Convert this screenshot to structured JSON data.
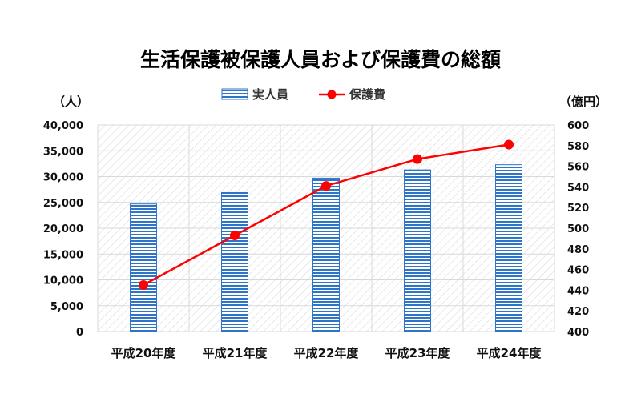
{
  "chart_data": {
    "type": "bar+line",
    "title": "生活保護被保護人員および保護費の総額",
    "categories": [
      "平成20年度",
      "平成21年度",
      "平成22年度",
      "平成23年度",
      "平成24年度"
    ],
    "series": [
      {
        "name": "実人員",
        "type": "bar",
        "axis": "left",
        "color": "#2e75c9",
        "values": [
          24700,
          26900,
          29700,
          31300,
          32300
        ]
      },
      {
        "name": "保護費",
        "type": "line",
        "axis": "right",
        "color": "#ff0000",
        "values": [
          445,
          493,
          541,
          567,
          581
        ]
      }
    ],
    "left_axis": {
      "unit": "（人）",
      "ylim": [
        0,
        40000
      ],
      "ticks": [
        "0",
        "5,000",
        "10,000",
        "15,000",
        "20,000",
        "25,000",
        "30,000",
        "35,000",
        "40,000"
      ]
    },
    "right_axis": {
      "unit": "（億円）",
      "ylim": [
        400,
        600
      ],
      "ticks": [
        "400",
        "420",
        "440",
        "460",
        "480",
        "500",
        "520",
        "540",
        "560",
        "580",
        "600"
      ]
    },
    "legend_position": "top-center",
    "grid": true
  }
}
